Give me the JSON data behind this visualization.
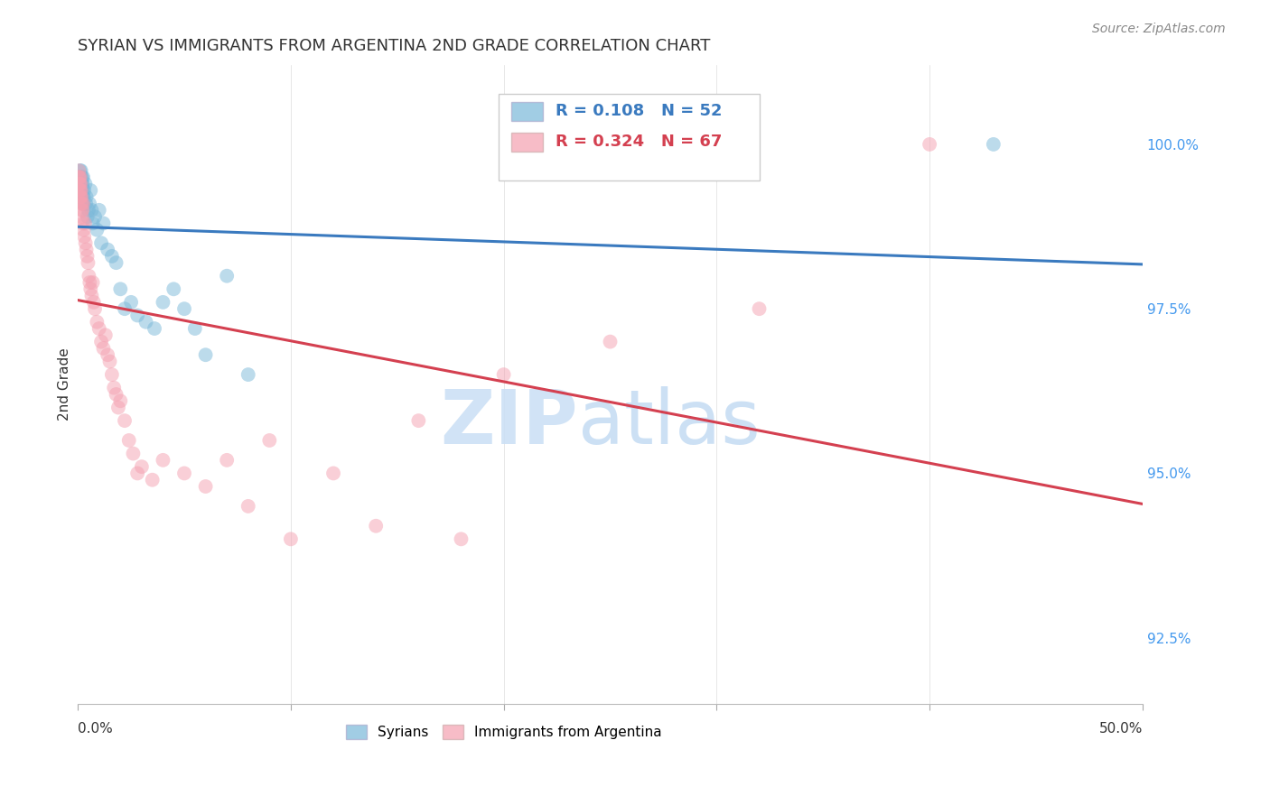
{
  "title": "SYRIAN VS IMMIGRANTS FROM ARGENTINA 2ND GRADE CORRELATION CHART",
  "source": "Source: ZipAtlas.com",
  "ylabel": "2nd Grade",
  "ylabel_right_values": [
    100.0,
    97.5,
    95.0,
    92.5
  ],
  "xlim": [
    0.0,
    50.0
  ],
  "ylim": [
    91.5,
    101.2
  ],
  "legend_blue_r": "0.108",
  "legend_blue_n": "52",
  "legend_pink_r": "0.324",
  "legend_pink_n": "67",
  "blue_color": "#7ab8d9",
  "pink_color": "#f4a0b0",
  "blue_line_color": "#3a7abf",
  "pink_line_color": "#d44050",
  "right_axis_color": "#4499ee",
  "syrians_x": [
    0.05,
    0.07,
    0.08,
    0.09,
    0.1,
    0.11,
    0.12,
    0.13,
    0.14,
    0.15,
    0.16,
    0.17,
    0.18,
    0.19,
    0.2,
    0.22,
    0.23,
    0.24,
    0.25,
    0.27,
    0.3,
    0.35,
    0.38,
    0.4,
    0.45,
    0.5,
    0.55,
    0.6,
    0.65,
    0.7,
    0.8,
    0.9,
    1.0,
    1.1,
    1.2,
    1.4,
    1.6,
    1.8,
    2.0,
    2.2,
    2.5,
    2.8,
    3.2,
    3.6,
    4.0,
    4.5,
    5.0,
    5.5,
    6.0,
    7.0,
    8.0,
    43.0
  ],
  "syrians_y": [
    99.3,
    99.5,
    99.4,
    99.2,
    99.6,
    99.3,
    99.5,
    99.4,
    99.2,
    99.6,
    99.5,
    99.3,
    99.4,
    99.2,
    99.5,
    99.4,
    99.3,
    99.1,
    99.5,
    99.2,
    99.3,
    99.4,
    99.1,
    99.2,
    98.9,
    99.0,
    99.1,
    99.3,
    99.0,
    98.8,
    98.9,
    98.7,
    99.0,
    98.5,
    98.8,
    98.4,
    98.3,
    98.2,
    97.8,
    97.5,
    97.6,
    97.4,
    97.3,
    97.2,
    97.6,
    97.8,
    97.5,
    97.2,
    96.8,
    98.0,
    96.5,
    100.0
  ],
  "argentina_x": [
    0.04,
    0.05,
    0.06,
    0.07,
    0.08,
    0.09,
    0.1,
    0.11,
    0.12,
    0.13,
    0.14,
    0.15,
    0.16,
    0.17,
    0.18,
    0.19,
    0.2,
    0.22,
    0.23,
    0.25,
    0.27,
    0.3,
    0.33,
    0.36,
    0.4,
    0.44,
    0.48,
    0.52,
    0.56,
    0.6,
    0.65,
    0.7,
    0.75,
    0.8,
    0.9,
    1.0,
    1.1,
    1.2,
    1.3,
    1.4,
    1.5,
    1.6,
    1.7,
    1.8,
    1.9,
    2.0,
    2.2,
    2.4,
    2.6,
    2.8,
    3.0,
    3.5,
    4.0,
    5.0,
    6.0,
    7.0,
    8.0,
    9.0,
    10.0,
    12.0,
    14.0,
    16.0,
    18.0,
    20.0,
    25.0,
    32.0,
    40.0
  ],
  "argentina_y": [
    99.5,
    99.6,
    99.4,
    99.5,
    99.3,
    99.4,
    99.2,
    99.3,
    99.5,
    99.2,
    99.4,
    99.1,
    99.3,
    99.2,
    99.0,
    99.1,
    98.9,
    99.0,
    98.8,
    99.1,
    98.7,
    98.6,
    98.8,
    98.5,
    98.4,
    98.3,
    98.2,
    98.0,
    97.9,
    97.8,
    97.7,
    97.9,
    97.6,
    97.5,
    97.3,
    97.2,
    97.0,
    96.9,
    97.1,
    96.8,
    96.7,
    96.5,
    96.3,
    96.2,
    96.0,
    96.1,
    95.8,
    95.5,
    95.3,
    95.0,
    95.1,
    94.9,
    95.2,
    95.0,
    94.8,
    95.2,
    94.5,
    95.5,
    94.0,
    95.0,
    94.2,
    95.8,
    94.0,
    96.5,
    97.0,
    97.5,
    100.0
  ]
}
